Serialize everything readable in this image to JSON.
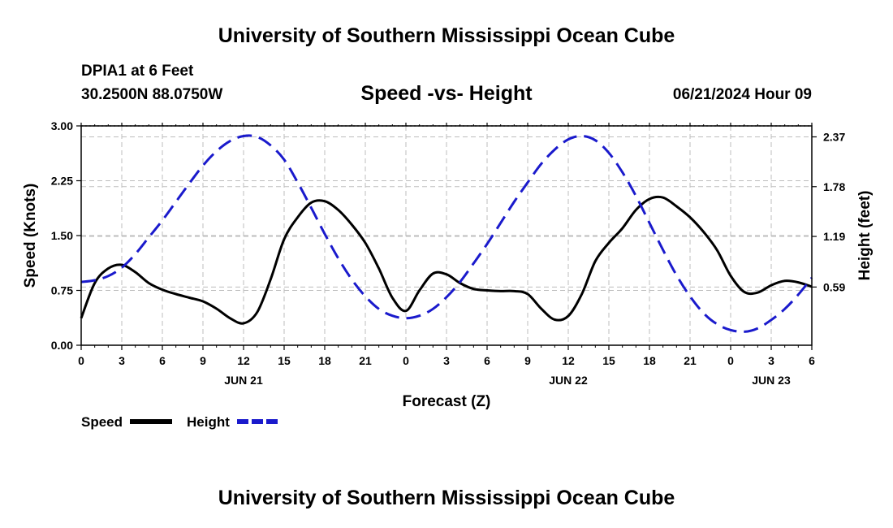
{
  "header": {
    "title": "University of Southern Mississippi Ocean Cube",
    "station": "DPIA1 at 6 Feet",
    "coords": "30.2500N  88.0750W",
    "chart_title": "Speed -vs- Height",
    "date": "06/21/2024 Hour 09"
  },
  "footer": {
    "title": "University of Southern Mississippi Ocean Cube"
  },
  "chart_data": {
    "type": "line",
    "title": "Speed -vs- Height",
    "xlabel": "Forecast (Z)",
    "ylabel_left": "Speed (Knots)",
    "ylabel_right": "Height (feet)",
    "x_unit": "hours since 06/21 00Z",
    "xlim": [
      0,
      54
    ],
    "ylim_left": [
      0,
      3
    ],
    "ylim_right": [
      -0.1,
      2.5
    ],
    "x_ticks": [
      0,
      3,
      6,
      9,
      12,
      15,
      18,
      21,
      24,
      27,
      30,
      33,
      36,
      39,
      42,
      45,
      48,
      51,
      54
    ],
    "x_tick_labels": [
      "0",
      "3",
      "6",
      "9",
      "12",
      "15",
      "18",
      "21",
      "0",
      "3",
      "6",
      "9",
      "12",
      "15",
      "18",
      "21",
      "0",
      "3",
      "6"
    ],
    "date_labels": [
      {
        "x": 12,
        "label": "JUN 21"
      },
      {
        "x": 36,
        "label": "JUN 22"
      },
      {
        "x": 51,
        "label": "JUN 23"
      }
    ],
    "y_ticks_left": [
      0,
      0.75,
      1.5,
      2.25,
      3.0
    ],
    "y_tick_labels_left": [
      "0.00",
      "0.75",
      "1.50",
      "2.25",
      "3.00"
    ],
    "y_ticks_right": [
      0.59,
      1.19,
      1.78,
      2.37
    ],
    "y_tick_labels_right": [
      "0.59",
      "1.19",
      "1.78",
      "2.37"
    ],
    "grid": true,
    "legend_position": "bottom-left",
    "series": [
      {
        "name": "Speed",
        "axis": "left",
        "color": "#000000",
        "dash": "solid",
        "x": [
          0,
          1,
          2,
          3,
          4,
          5,
          6,
          7,
          8,
          9,
          10,
          11,
          12,
          13,
          14,
          15,
          16,
          17,
          18,
          19,
          20,
          21,
          22,
          23,
          24,
          25,
          26,
          27,
          28,
          29,
          30,
          31,
          32,
          33,
          34,
          35,
          36,
          37,
          38,
          39,
          40,
          41,
          42,
          43,
          44,
          45,
          46,
          47,
          48,
          49,
          50,
          51,
          52,
          53,
          54
        ],
        "values": [
          0.37,
          0.85,
          1.05,
          1.1,
          1.0,
          0.85,
          0.76,
          0.7,
          0.65,
          0.6,
          0.5,
          0.37,
          0.3,
          0.45,
          0.9,
          1.45,
          1.75,
          1.95,
          1.97,
          1.85,
          1.65,
          1.4,
          1.05,
          0.65,
          0.47,
          0.75,
          0.98,
          0.97,
          0.85,
          0.77,
          0.75,
          0.74,
          0.74,
          0.7,
          0.5,
          0.35,
          0.4,
          0.7,
          1.15,
          1.4,
          1.6,
          1.85,
          2.0,
          2.02,
          1.9,
          1.75,
          1.55,
          1.3,
          0.95,
          0.73,
          0.72,
          0.82,
          0.88,
          0.86,
          0.8
        ]
      },
      {
        "name": "Height",
        "axis": "right",
        "color": "#1a1acc",
        "dash": "dashed",
        "x": [
          0,
          1,
          2,
          3,
          4,
          5,
          6,
          7,
          8,
          9,
          10,
          11,
          12,
          13,
          14,
          15,
          16,
          17,
          18,
          19,
          20,
          21,
          22,
          23,
          24,
          25,
          26,
          27,
          28,
          29,
          30,
          31,
          32,
          33,
          34,
          35,
          36,
          37,
          38,
          39,
          40,
          41,
          42,
          43,
          44,
          45,
          46,
          47,
          48,
          49,
          50,
          51,
          52,
          53,
          54
        ],
        "values": [
          0.65,
          0.67,
          0.72,
          0.82,
          0.98,
          1.18,
          1.38,
          1.6,
          1.82,
          2.03,
          2.2,
          2.32,
          2.38,
          2.37,
          2.27,
          2.1,
          1.83,
          1.53,
          1.22,
          0.93,
          0.68,
          0.48,
          0.33,
          0.25,
          0.22,
          0.25,
          0.33,
          0.47,
          0.65,
          0.87,
          1.1,
          1.35,
          1.6,
          1.83,
          2.05,
          2.22,
          2.34,
          2.38,
          2.33,
          2.18,
          1.95,
          1.67,
          1.35,
          1.03,
          0.73,
          0.48,
          0.28,
          0.15,
          0.08,
          0.06,
          0.1,
          0.2,
          0.33,
          0.5,
          0.7
        ]
      }
    ]
  }
}
